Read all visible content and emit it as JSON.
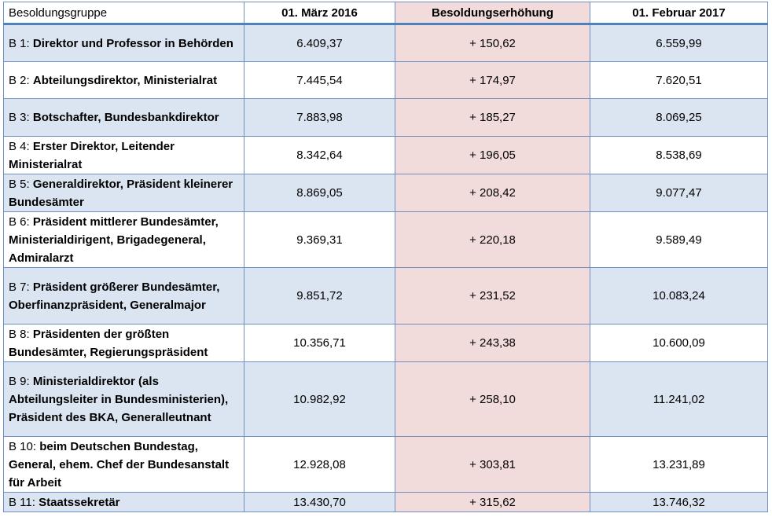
{
  "headers": {
    "group": "Besoldungsgruppe",
    "date_old": "01. März 2016",
    "increase": "Besoldungserhöhung",
    "date_new": "01. Februar 2017"
  },
  "rows": [
    {
      "grade": "B 1:",
      "title": "Direktor und Professor in Behörden",
      "old": "6.409,37",
      "increase": "+ 150,62",
      "new": "6.559,99"
    },
    {
      "grade": "B 2:",
      "title": "Abteilungsdirektor, Ministerialrat",
      "old": "7.445,54",
      "increase": "+ 174,97",
      "new": "7.620,51"
    },
    {
      "grade": "B 3:",
      "title": "Botschafter, Bundesbankdirektor",
      "old": "7.883,98",
      "increase": "+ 185,27",
      "new": "8.069,25"
    },
    {
      "grade": "B 4:",
      "title": "Erster Direktor, Leitender Ministerialrat",
      "old": "8.342,64",
      "increase": "+ 196,05",
      "new": "8.538,69"
    },
    {
      "grade": "B 5:",
      "title": "Generaldirektor, Präsident kleinerer Bundesämter",
      "old": "8.869,05",
      "increase": "+ 208,42",
      "new": "9.077,47"
    },
    {
      "grade": "B 6:",
      "title": "Präsident mittlerer Bundesämter, Ministerialdirigent, Brigadegeneral, Admiralarzt",
      "old": "9.369,31",
      "increase": "+ 220,18",
      "new": "9.589,49"
    },
    {
      "grade": "B 7:",
      "title": "Präsident größerer Bundesämter, Oberfinanzpräsident, Generalmajor",
      "old": "9.851,72",
      "increase": "+ 231,52",
      "new": "10.083,24"
    },
    {
      "grade": "B 8:",
      "title": "Präsidenten der größten Bundesämter, Regierungspräsident",
      "old": "10.356,71",
      "increase": "+ 243,38",
      "new": "10.600,09"
    },
    {
      "grade": "B 9:",
      "title": "Ministerialdirektor (als Abteilungsleiter in Bundesministerien), Präsident des BKA, Generalleutnant",
      "old": "10.982,92",
      "increase": "+ 258,10",
      "new": "11.241,02"
    },
    {
      "grade": "B 10:",
      "title": "beim Deutschen Bundestag, General, ehem. Chef der Bundesanstalt für Arbeit",
      "old": "12.928,08",
      "increase": "+ 303,81",
      "new": "13.231,89"
    },
    {
      "grade": "B 11:",
      "title": "Staatssekretär",
      "old": "13.430,70",
      "increase": "+ 315,62",
      "new": "13.746,32"
    }
  ],
  "colors": {
    "header_rule": "#4f81bd",
    "border": "#6f8fc3",
    "row_shade": "#dbe4f1",
    "increase_fill": "#f2dcdb"
  }
}
